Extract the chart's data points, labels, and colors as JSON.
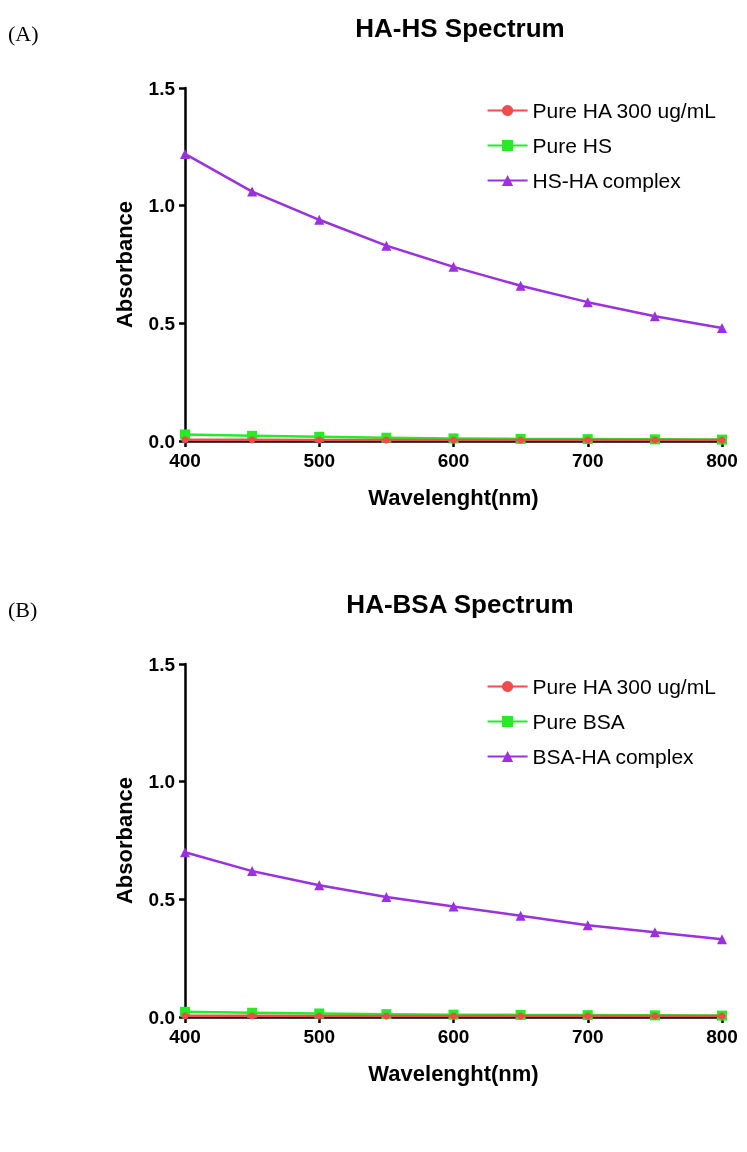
{
  "chart_data": [
    {
      "type": "line",
      "title": "HA-HS Spectrum",
      "xlabel": "Wavelenght(nm)",
      "ylabel": "Absorbance",
      "annotations": [
        "(A)"
      ],
      "x": [
        400,
        450,
        500,
        550,
        600,
        650,
        700,
        750,
        800
      ],
      "series": [
        {
          "name": "Pure HA 300 ug/mL",
          "color": "#f04c4c",
          "marker": "circle",
          "values": [
            0.005,
            0.005,
            0.004,
            0.004,
            0.004,
            0.004,
            0.004,
            0.004,
            0.004
          ]
        },
        {
          "name": "Pure HS",
          "color": "#22ee22",
          "marker": "square",
          "values": [
            0.028,
            0.022,
            0.018,
            0.014,
            0.011,
            0.009,
            0.008,
            0.007,
            0.006
          ]
        },
        {
          "name": "HS-HA complex",
          "color": "#9b30e0",
          "marker": "triangle",
          "values": [
            1.22,
            1.06,
            0.94,
            0.83,
            0.74,
            0.66,
            0.59,
            0.53,
            0.48
          ]
        }
      ],
      "xlim": [
        400,
        800
      ],
      "xticks": [
        400,
        500,
        600,
        700,
        800
      ],
      "ylim": [
        0,
        1.5
      ],
      "yticks": [
        {
          "value": 0,
          "label": "0.0"
        },
        {
          "value": 0.5,
          "label": "0.5"
        },
        {
          "value": 1,
          "label": "1.0"
        },
        {
          "value": 1.5,
          "label": "1.5"
        }
      ],
      "grid": false,
      "legend": "top right",
      "line_style": "solid"
    },
    {
      "type": "line",
      "title": "HA-BSA Spectrum",
      "xlabel": "Wavelenght(nm)",
      "ylabel": "Absorbance",
      "annotations": [
        "(B)"
      ],
      "x": [
        400,
        450,
        500,
        550,
        600,
        650,
        700,
        750,
        800
      ],
      "series": [
        {
          "name": "Pure HA 300 ug/mL",
          "color": "#f04c4c",
          "marker": "circle",
          "values": [
            0.005,
            0.005,
            0.004,
            0.004,
            0.004,
            0.004,
            0.004,
            0.004,
            0.004
          ]
        },
        {
          "name": "Pure BSA",
          "color": "#22ee22",
          "marker": "square",
          "values": [
            0.022,
            0.018,
            0.015,
            0.012,
            0.01,
            0.009,
            0.008,
            0.007,
            0.006
          ]
        },
        {
          "name": "BSA-HA complex",
          "color": "#9b30e0",
          "marker": "triangle",
          "values": [
            0.7,
            0.62,
            0.56,
            0.51,
            0.47,
            0.43,
            0.39,
            0.36,
            0.33
          ]
        }
      ],
      "xlim": [
        400,
        800
      ],
      "xticks": [
        400,
        500,
        600,
        700,
        800
      ],
      "ylim": [
        0,
        1.5
      ],
      "yticks": [
        {
          "value": 0,
          "label": "0.0"
        },
        {
          "value": 0.5,
          "label": "0.5"
        },
        {
          "value": 1,
          "label": "1.0"
        },
        {
          "value": 1.5,
          "label": "1.5"
        }
      ],
      "grid": false,
      "legend": "top right",
      "line_style": "solid"
    }
  ]
}
